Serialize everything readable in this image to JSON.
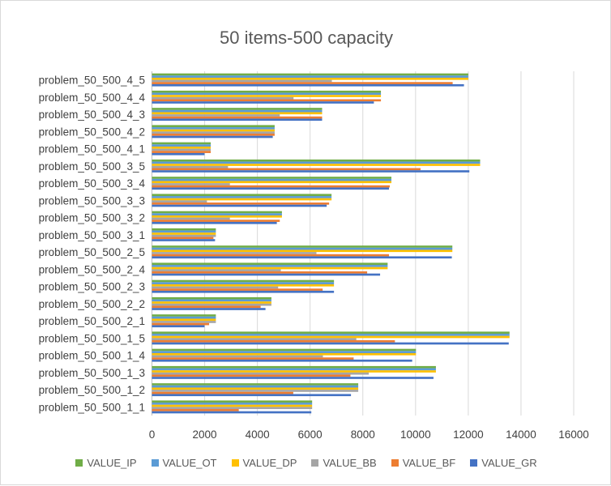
{
  "chart_data": {
    "type": "bar",
    "orientation": "horizontal",
    "title": "50 items-500 capacity",
    "xlim": [
      0,
      16000
    ],
    "xticks": [
      "0",
      "2000",
      "4000",
      "6000",
      "8000",
      "10000",
      "12000",
      "14000",
      "16000"
    ],
    "grid": true,
    "legend_position": "bottom",
    "categories": [
      "problem_50_500_1_1",
      "problem_50_500_1_2",
      "problem_50_500_1_3",
      "problem_50_500_1_4",
      "problem_50_500_1_5",
      "problem_50_500_2_1",
      "problem_50_500_2_2",
      "problem_50_500_2_3",
      "problem_50_500_2_4",
      "problem_50_500_2_5",
      "problem_50_500_3_1",
      "problem_50_500_3_2",
      "problem_50_500_3_3",
      "problem_50_500_3_4",
      "problem_50_500_3_5",
      "problem_50_500_4_1",
      "problem_50_500_4_2",
      "problem_50_500_4_3",
      "problem_50_500_4_4",
      "problem_50_500_4_5"
    ],
    "series": [
      {
        "name": "VALUE_IP",
        "color": "#70AD47",
        "values": [
          6077,
          7826,
          10772,
          10015,
          13565,
          2425,
          4532,
          6905,
          8941,
          11396,
          2425,
          4931,
          6813,
          9084,
          12450,
          2230,
          4655,
          6455,
          8686,
          12000
        ]
      },
      {
        "name": "VALUE_OT",
        "color": "#5B9BD5",
        "values": [
          6077,
          7826,
          10772,
          10015,
          13565,
          2425,
          4532,
          6905,
          8941,
          11396,
          2425,
          4931,
          6813,
          9084,
          12450,
          2230,
          4655,
          6455,
          8686,
          12000
        ]
      },
      {
        "name": "VALUE_DP",
        "color": "#FFC000",
        "values": [
          6077,
          7826,
          10772,
          10015,
          13565,
          2425,
          4532,
          6905,
          8941,
          11396,
          2425,
          4931,
          6813,
          9084,
          12450,
          2230,
          4655,
          6455,
          8686,
          12000
        ]
      },
      {
        "name": "VALUE_BB",
        "color": "#A5A5A5",
        "values": [
          6077,
          7826,
          8225,
          6486,
          7754,
          2425,
          4532,
          4788,
          4890,
          6240,
          2425,
          2957,
          2087,
          2957,
          2885,
          2230,
          4655,
          4849,
          5371,
          6824
        ]
      },
      {
        "name": "VALUE_BF",
        "color": "#ED7D31",
        "values": [
          3294,
          5361,
          7529,
          7652,
          9217,
          2169,
          4123,
          6476,
          8164,
          8993,
          2332,
          4849,
          6721,
          9023,
          10189,
          2230,
          4655,
          6455,
          8686,
          11407
        ]
      },
      {
        "name": "VALUE_GR",
        "color": "#4472C4",
        "values": [
          6046,
          7550,
          10680,
          9872,
          13535,
          1995,
          4307,
          6905,
          8655,
          11376,
          2394,
          4737,
          6629,
          8993,
          12041,
          1995,
          4583,
          6455,
          8419,
          11837
        ]
      }
    ]
  }
}
